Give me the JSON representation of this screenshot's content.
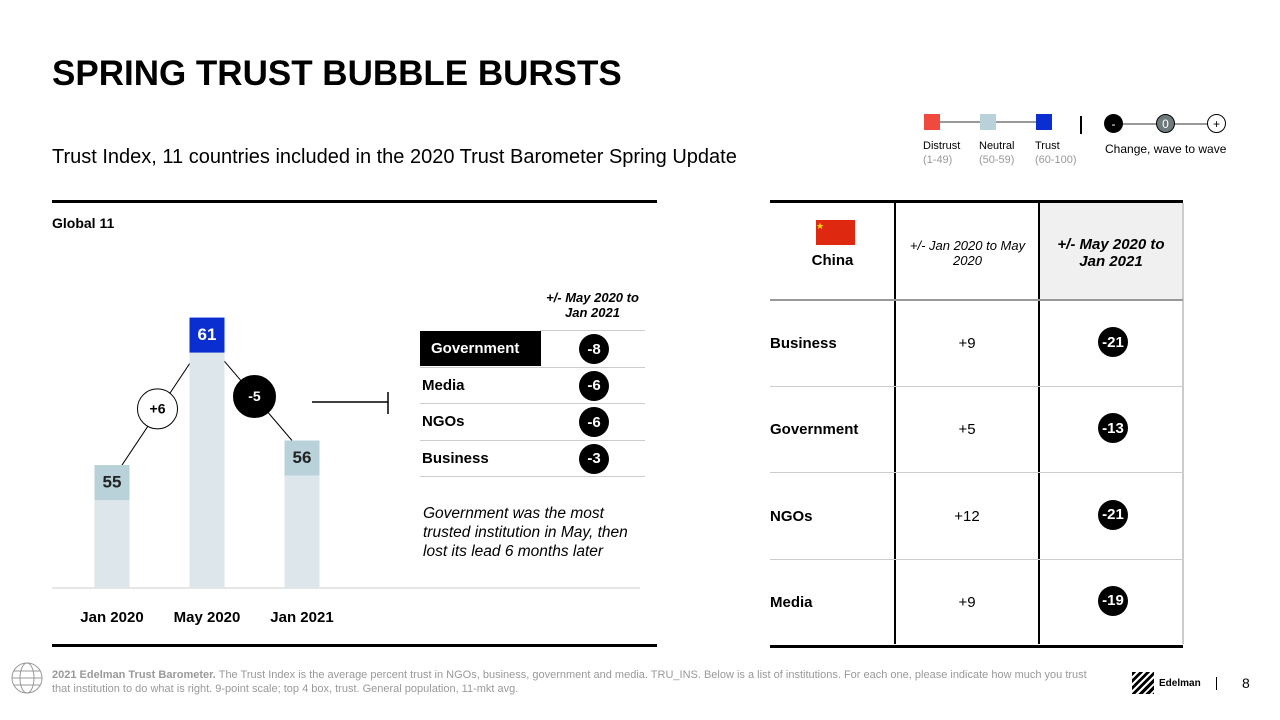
{
  "title": "SPRING TRUST BUBBLE BURSTS",
  "subtitle": "Trust Index, 11 countries included in the 2020 Trust Barometer Spring Update",
  "legend": {
    "items": [
      {
        "label": "Distrust",
        "range": "(1-49)",
        "color": "#f04a3e"
      },
      {
        "label": "Neutral",
        "range": "(50-59)",
        "color": "#b9d1d9"
      },
      {
        "label": "Trust",
        "range": "(60-100)",
        "color": "#0a2ecf"
      }
    ],
    "change_symbols": [
      "-",
      "0",
      "+"
    ],
    "change_label": "Change, wave to wave"
  },
  "chart_data": {
    "type": "bar",
    "title": "Global 11",
    "categories": [
      "Jan 2020",
      "May 2020",
      "Jan 2021"
    ],
    "values": [
      55,
      61,
      56
    ],
    "colors": [
      "#b9d1d9",
      "#0a2ecf",
      "#b9d1d9"
    ],
    "changes": [
      6,
      -5
    ],
    "change_labels": [
      "+6",
      "-5"
    ],
    "ylim": [
      50,
      62
    ]
  },
  "institutions": {
    "header": "+/- May 2020 to Jan 2021",
    "rows": [
      {
        "name": "Government",
        "change": -8
      },
      {
        "name": "Media",
        "change": -6
      },
      {
        "name": "NGOs",
        "change": -6
      },
      {
        "name": "Business",
        "change": -3
      }
    ],
    "note": "Government was the most trusted institution in May, then lost its lead 6 months later"
  },
  "country_table": {
    "country": "China",
    "columns": [
      "+/- Jan 2020 to May 2020",
      "+/- May 2020 to Jan 2021"
    ],
    "rows": [
      [
        "Business",
        "+9",
        -21
      ],
      [
        "Government",
        "+5",
        -13
      ],
      [
        "NGOs",
        "+12",
        -21
      ],
      [
        "Media",
        "+9",
        -19
      ]
    ]
  },
  "footer": {
    "bold": "2021 Edelman Trust Barometer.",
    "text": "The Trust Index is the average percent trust in NGOs, business, government and media. TRU_INS. Below is a list of institutions. For each one, please indicate how much you trust that institution to do what is right. 9-point scale; top 4 box, trust. General population, 11-mkt avg.",
    "brand": "Edelman",
    "page": 8
  }
}
